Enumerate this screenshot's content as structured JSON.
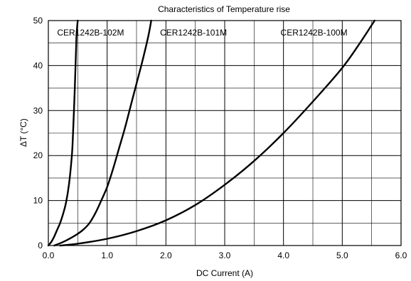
{
  "chart_data": {
    "type": "line",
    "title": "Characteristics of Temperature rise",
    "xlabel": "DC Current (A)",
    "ylabel": "ΔT (°C)",
    "xlim": [
      0,
      6
    ],
    "ylim": [
      0,
      50
    ],
    "grid": true,
    "x_ticks": [
      "0.0",
      "1.0",
      "2.0",
      "3.0",
      "4.0",
      "5.0",
      "6.0"
    ],
    "y_ticks": [
      "0",
      "10",
      "20",
      "30",
      "40",
      "50"
    ],
    "x_minor_step": 0.5,
    "y_minor_step": 5,
    "line_color": "#000000",
    "series": [
      {
        "name": "CER1242B-102M",
        "points": [
          [
            0,
            0
          ],
          [
            0.05,
            0.8
          ],
          [
            0.1,
            2.0
          ],
          [
            0.15,
            3.5
          ],
          [
            0.2,
            5.0
          ],
          [
            0.25,
            7.0
          ],
          [
            0.3,
            9.5
          ],
          [
            0.35,
            13.5
          ],
          [
            0.4,
            20.0
          ],
          [
            0.42,
            25.0
          ],
          [
            0.45,
            35.0
          ],
          [
            0.47,
            43.0
          ],
          [
            0.48,
            47.0
          ],
          [
            0.5,
            50.0
          ]
        ]
      },
      {
        "name": "CER1242B-101M",
        "points": [
          [
            0.1,
            0
          ],
          [
            0.2,
            0.5
          ],
          [
            0.3,
            1.1
          ],
          [
            0.4,
            1.8
          ],
          [
            0.5,
            2.6
          ],
          [
            0.6,
            3.6
          ],
          [
            0.7,
            5.0
          ],
          [
            0.8,
            7.2
          ],
          [
            0.9,
            10.0
          ],
          [
            1.0,
            13.0
          ],
          [
            1.1,
            17.0
          ],
          [
            1.2,
            21.5
          ],
          [
            1.3,
            26.0
          ],
          [
            1.4,
            31.0
          ],
          [
            1.5,
            36.0
          ],
          [
            1.6,
            41.0
          ],
          [
            1.7,
            46.5
          ],
          [
            1.75,
            50.0
          ]
        ]
      },
      {
        "name": "CER1242B-100M",
        "points": [
          [
            0.2,
            0
          ],
          [
            0.5,
            0.4
          ],
          [
            1.0,
            1.5
          ],
          [
            1.5,
            3.2
          ],
          [
            2.0,
            5.6
          ],
          [
            2.5,
            9.0
          ],
          [
            3.0,
            13.5
          ],
          [
            3.5,
            18.8
          ],
          [
            4.0,
            25.0
          ],
          [
            4.5,
            32.0
          ],
          [
            5.0,
            39.5
          ],
          [
            5.3,
            45.0
          ],
          [
            5.55,
            50.0
          ]
        ]
      }
    ]
  }
}
